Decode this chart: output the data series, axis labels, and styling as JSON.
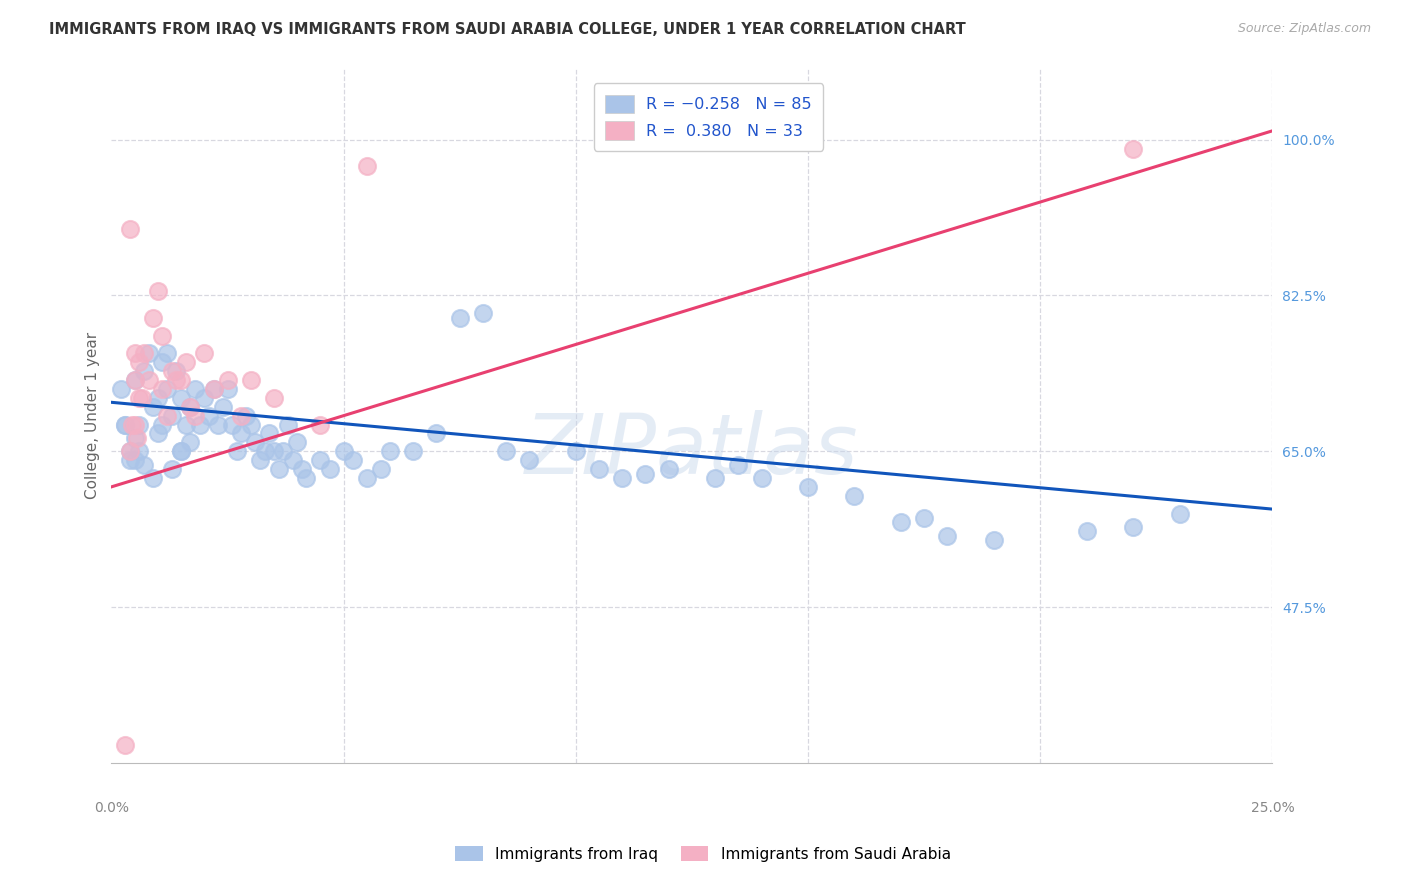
{
  "title": "IMMIGRANTS FROM IRAQ VS IMMIGRANTS FROM SAUDI ARABIA COLLEGE, UNDER 1 YEAR CORRELATION CHART",
  "source": "Source: ZipAtlas.com",
  "ylabel": "College, Under 1 year",
  "right_yticks": [
    47.5,
    65.0,
    82.5,
    100.0
  ],
  "xlim": [
    0.0,
    25.0
  ],
  "ylim": [
    30.0,
    108.0
  ],
  "iraq_color": "#aac4e8",
  "saudi_color": "#f4b0c4",
  "iraq_line_color": "#1155bb",
  "saudi_line_color": "#e84070",
  "watermark_text": "ZIPatlas",
  "background": "#ffffff",
  "grid_color": "#d8d8e0",
  "iraq_trend_x0": 0.0,
  "iraq_trend_y0": 70.5,
  "iraq_trend_x1": 25.0,
  "iraq_trend_y1": 58.5,
  "saudi_trend_x0": 0.0,
  "saudi_trend_y0": 61.0,
  "saudi_trend_x1": 25.0,
  "saudi_trend_y1": 101.0,
  "iraq_x": [
    0.3,
    0.4,
    0.5,
    0.5,
    0.6,
    0.6,
    0.7,
    0.8,
    0.9,
    1.0,
    1.0,
    1.1,
    1.1,
    1.2,
    1.2,
    1.3,
    1.4,
    1.5,
    1.5,
    1.6,
    1.7,
    1.8,
    1.9,
    2.0,
    2.1,
    2.2,
    2.3,
    2.4,
    2.5,
    2.6,
    2.7,
    2.8,
    2.9,
    3.0,
    3.1,
    3.2,
    3.3,
    3.4,
    3.5,
    3.6,
    3.7,
    3.8,
    3.9,
    4.0,
    4.1,
    4.2,
    4.5,
    4.7,
    5.0,
    5.2,
    5.5,
    5.8,
    6.0,
    6.5,
    7.0,
    7.5,
    8.0,
    8.5,
    9.0,
    10.0,
    10.5,
    11.0,
    11.5,
    12.0,
    13.0,
    13.5,
    14.0,
    15.0,
    16.0,
    17.0,
    17.5,
    18.0,
    19.0,
    21.0,
    22.0,
    23.0,
    0.2,
    0.3,
    0.4,
    0.5,
    0.7,
    0.9,
    1.3,
    1.5,
    1.7
  ],
  "iraq_y": [
    68.0,
    64.0,
    73.0,
    66.5,
    65.0,
    68.0,
    74.0,
    76.0,
    70.0,
    67.0,
    71.0,
    68.0,
    75.0,
    72.0,
    76.0,
    69.0,
    74.0,
    71.0,
    65.0,
    68.0,
    70.0,
    72.0,
    68.0,
    71.0,
    69.0,
    72.0,
    68.0,
    70.0,
    72.0,
    68.0,
    65.0,
    67.0,
    69.0,
    68.0,
    66.0,
    64.0,
    65.0,
    67.0,
    65.0,
    63.0,
    65.0,
    68.0,
    64.0,
    66.0,
    63.0,
    62.0,
    64.0,
    63.0,
    65.0,
    64.0,
    62.0,
    63.0,
    65.0,
    65.0,
    67.0,
    80.0,
    80.5,
    65.0,
    64.0,
    65.0,
    63.0,
    62.0,
    62.5,
    63.0,
    62.0,
    63.5,
    62.0,
    61.0,
    60.0,
    57.0,
    57.5,
    55.5,
    55.0,
    56.0,
    56.5,
    58.0,
    72.0,
    68.0,
    65.0,
    64.0,
    63.5,
    62.0,
    63.0,
    65.0,
    66.0
  ],
  "saudi_x": [
    0.4,
    0.4,
    0.5,
    0.5,
    0.5,
    0.6,
    0.6,
    0.7,
    0.8,
    0.9,
    1.0,
    1.1,
    1.1,
    1.2,
    1.3,
    1.4,
    1.5,
    1.6,
    1.7,
    1.8,
    2.0,
    2.2,
    2.5,
    2.8,
    3.0,
    3.5,
    4.5,
    5.5,
    22.0,
    0.3,
    0.45,
    0.55,
    0.65
  ],
  "saudi_y": [
    90.0,
    65.0,
    73.0,
    68.0,
    76.0,
    71.0,
    75.0,
    76.0,
    73.0,
    80.0,
    83.0,
    78.0,
    72.0,
    69.0,
    74.0,
    73.0,
    73.0,
    75.0,
    70.0,
    69.0,
    76.0,
    72.0,
    73.0,
    69.0,
    73.0,
    71.0,
    68.0,
    97.0,
    99.0,
    32.0,
    68.0,
    66.5,
    71.0
  ]
}
